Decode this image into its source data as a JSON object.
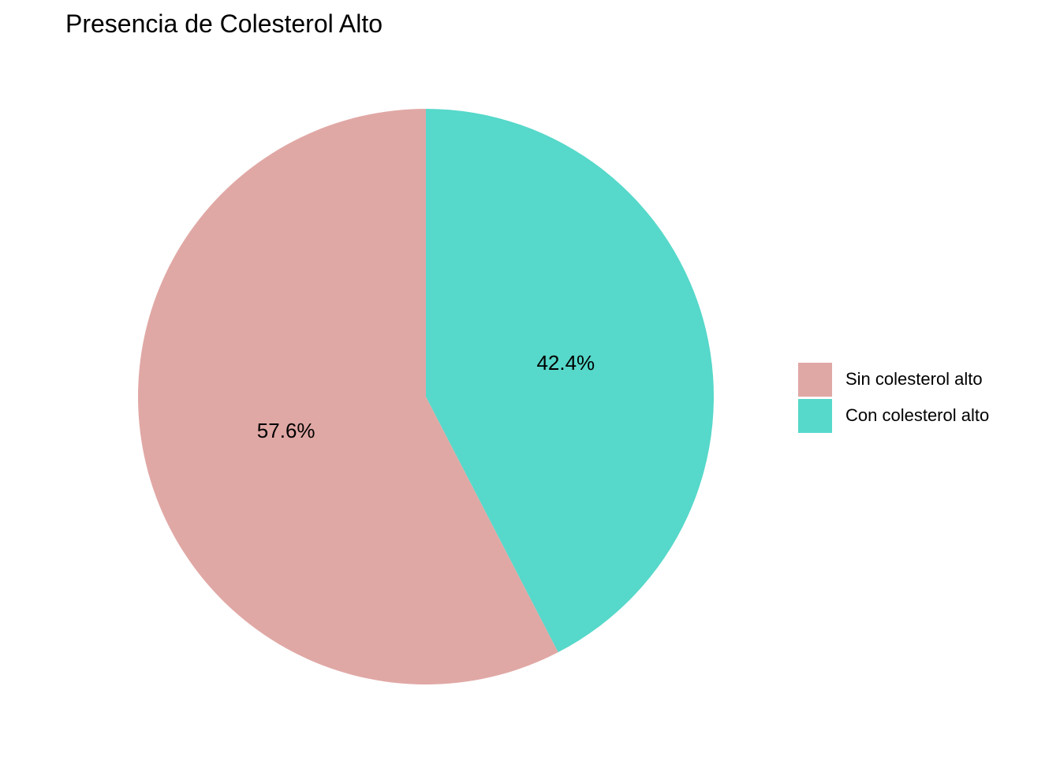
{
  "chart_data": {
    "type": "pie",
    "title": "Presencia de Colesterol Alto",
    "slices": [
      {
        "label": "Sin colesterol alto",
        "value": 57.6,
        "display": "57.6%",
        "color": "#e0a8a5"
      },
      {
        "label": "Con colesterol alto",
        "value": 42.4,
        "display": "42.4%",
        "color": "#56d8ca"
      }
    ],
    "legend_position": "right",
    "start": "top",
    "direction": "counterclockwise from top for first slice"
  }
}
